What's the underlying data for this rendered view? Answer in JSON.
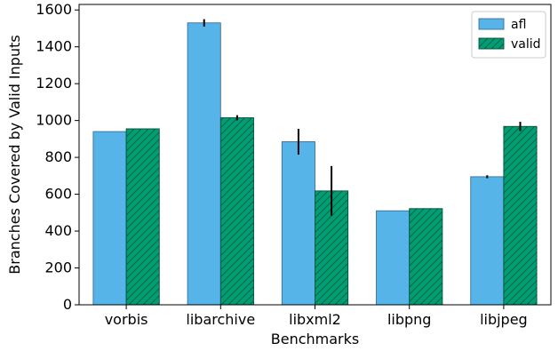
{
  "chart_data": {
    "type": "bar",
    "title": "",
    "xlabel": "Benchmarks",
    "ylabel": "Branches Covered by Valid Inputs",
    "categories": [
      "vorbis",
      "libarchive",
      "libxml2",
      "libpng",
      "libjpeg"
    ],
    "series": [
      {
        "name": "afl",
        "color": "#56B4E9",
        "hatch": false,
        "values": [
          940,
          1530,
          885,
          510,
          695
        ],
        "errors": [
          0,
          20,
          70,
          0,
          8
        ]
      },
      {
        "name": "valid",
        "color": "#009E73",
        "hatch": true,
        "values": [
          955,
          1015,
          618,
          522,
          968
        ],
        "errors": [
          0,
          14,
          135,
          0,
          25
        ]
      }
    ],
    "yticks": [
      0,
      200,
      400,
      600,
      800,
      1000,
      1200,
      1400,
      1600
    ],
    "ylim": [
      0,
      1630
    ],
    "legend_position": "top-right",
    "grid": false
  }
}
